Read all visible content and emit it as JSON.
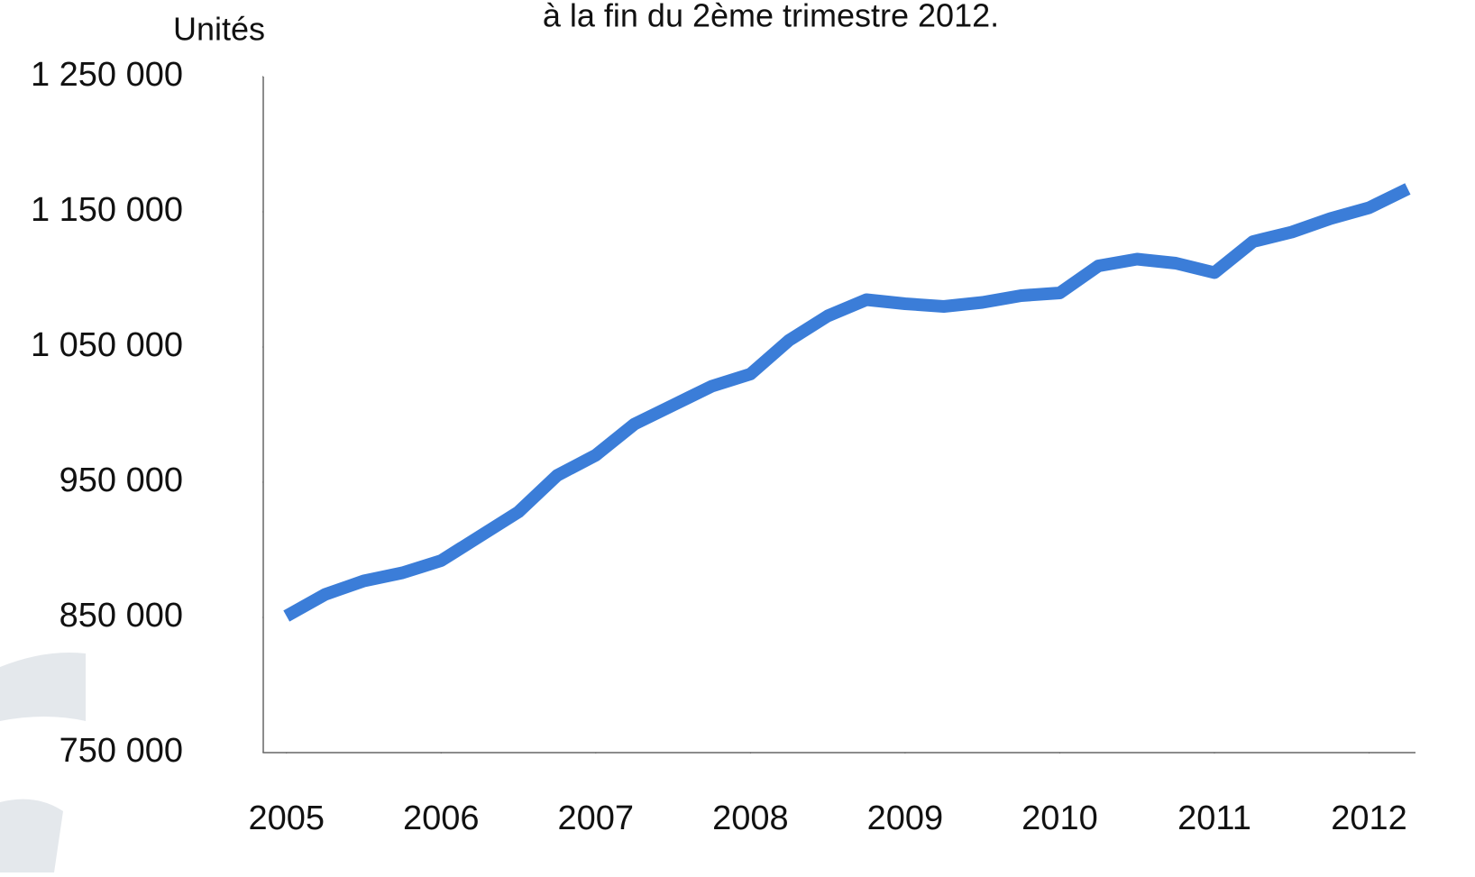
{
  "chart_data": {
    "type": "line",
    "title": "à la fin du 2ème trimestre 2012.",
    "y_label": "Unités",
    "x": [
      2005,
      2005.25,
      2005.5,
      2005.75,
      2006,
      2006.25,
      2006.5,
      2006.75,
      2007,
      2007.25,
      2007.5,
      2007.75,
      2008,
      2008.25,
      2008.5,
      2008.75,
      2009,
      2009.25,
      2009.5,
      2009.75,
      2010,
      2010.25,
      2010.5,
      2010.75,
      2011,
      2011.25,
      2011.5,
      2011.75,
      2012,
      2012.25
    ],
    "series": [
      {
        "name": "Unités",
        "color": "#3b7dd8",
        "values": [
          851000,
          867000,
          877000,
          883000,
          892000,
          910000,
          928000,
          955000,
          970000,
          993000,
          1007000,
          1021000,
          1030000,
          1055000,
          1073000,
          1085000,
          1082000,
          1080000,
          1083000,
          1088000,
          1090000,
          1110000,
          1115000,
          1112000,
          1105000,
          1128000,
          1135000,
          1145000,
          1153000,
          1167000
        ]
      }
    ],
    "xlim": [
      2004.85,
      2012.3
    ],
    "xticks": [
      2005,
      2006,
      2007,
      2008,
      2009,
      2010,
      2011,
      2012
    ],
    "ylim": [
      750000,
      1250000
    ],
    "yticks": [
      {
        "value": 750000,
        "label": "750 000"
      },
      {
        "value": 850000,
        "label": "850 000"
      },
      {
        "value": 950000,
        "label": "950 000"
      },
      {
        "value": 1050000,
        "label": "1 050 000"
      },
      {
        "value": 1150000,
        "label": "1 150 000"
      },
      {
        "value": 1250000,
        "label": "1 250 000"
      }
    ],
    "grid": false
  }
}
